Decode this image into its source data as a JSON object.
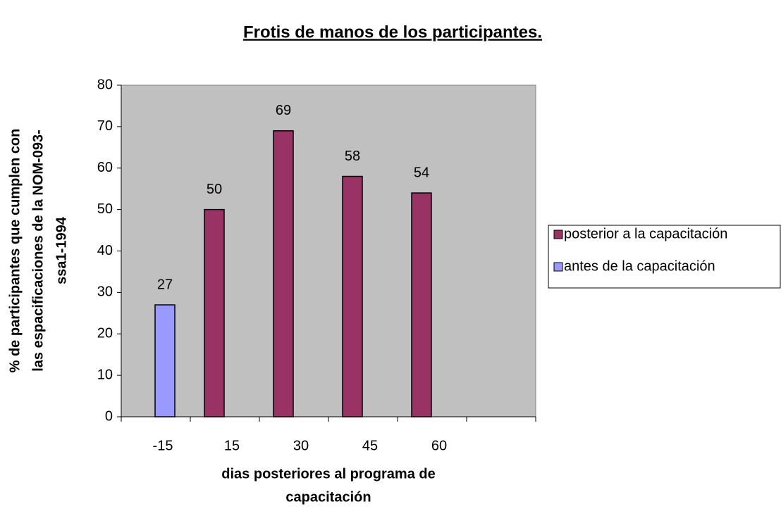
{
  "chart_data": {
    "type": "bar",
    "title": "Frotis de manos de los participantes.",
    "ylabel": [
      "% de participantes que cumplen con",
      "las espacificaciones de la NOM-093-",
      "ssa1-1994"
    ],
    "xlabel": [
      "dias  posteriores al programa de",
      "capacitación"
    ],
    "categories": [
      "-15",
      "15",
      "30",
      "45",
      "60",
      null
    ],
    "series": [
      {
        "name": "posterior a la capacitación",
        "color": "#993366",
        "values": [
          null,
          50,
          69,
          58,
          54,
          null
        ]
      },
      {
        "name": "antes de la capacitación",
        "color": "#9999ff",
        "values": [
          27,
          null,
          null,
          null,
          null,
          null
        ]
      }
    ],
    "ylim": [
      0,
      80
    ],
    "yticks": [
      0,
      10,
      20,
      30,
      40,
      50,
      60,
      70,
      80
    ],
    "grid": false,
    "legend": "right",
    "plot_background": "#c0c0c0"
  }
}
